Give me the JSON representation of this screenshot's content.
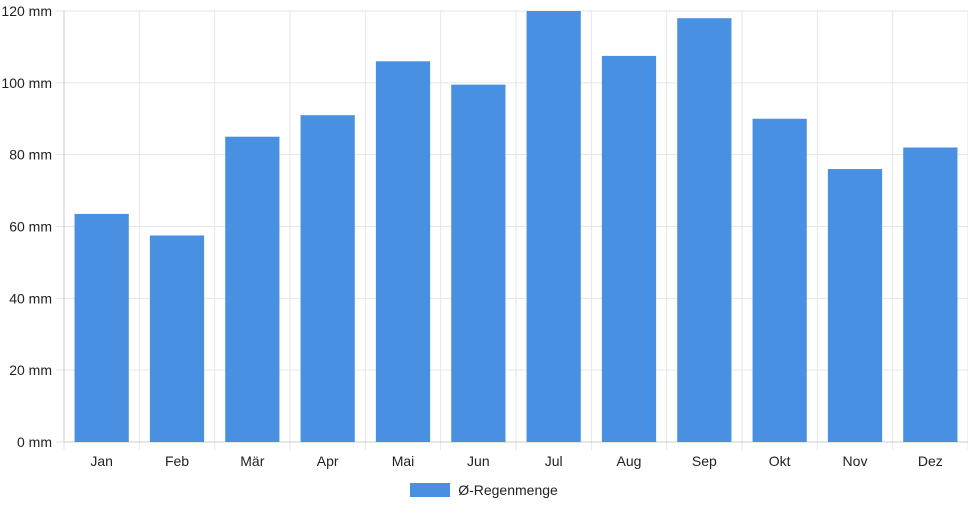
{
  "chart_data": {
    "type": "bar",
    "categories": [
      "Jan",
      "Feb",
      "Mär",
      "Apr",
      "Mai",
      "Jun",
      "Jul",
      "Aug",
      "Sep",
      "Okt",
      "Nov",
      "Dez"
    ],
    "series": [
      {
        "name": "Ø-Regenmenge",
        "values": [
          63.5,
          57.5,
          85,
          91,
          106,
          99.5,
          120,
          107.5,
          118,
          90,
          76,
          82
        ]
      }
    ],
    "y_ticks": [
      "0 mm",
      "20 mm",
      "40 mm",
      "60 mm",
      "80 mm",
      "100 mm",
      "120 mm"
    ],
    "ylim": [
      0,
      120
    ],
    "ytick_step": 20,
    "grid": true,
    "legend_position": "bottom",
    "colors": {
      "bar": "#4a90e2",
      "grid": "#e6e6e6",
      "axis": "#cccccc",
      "text": "#222222"
    }
  }
}
